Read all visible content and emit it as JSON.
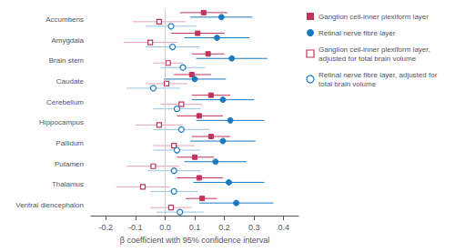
{
  "chart_data": {
    "type": "forest",
    "xlabel": "β coefficient with 95% confidence interval",
    "categories": [
      "Accumbens",
      "Amygdala",
      "Brain stem",
      "Caudate",
      "Cerebellum",
      "Hippocampus",
      "Pallidum",
      "Putamen",
      "Thalamus",
      "Ventral diencephalon"
    ],
    "series": [
      {
        "name": "Ganglion cell-inner plexiform layer",
        "color": "#c0335a",
        "marker": "square",
        "values": [
          0.13,
          0.11,
          0.145,
          0.09,
          0.155,
          0.115,
          0.155,
          0.1,
          0.115,
          0.125
        ],
        "ci_lo": [
          0.05,
          0.02,
          0.09,
          0.03,
          0.09,
          0.04,
          0.09,
          0.04,
          0.04,
          0.07
        ],
        "ci_hi": [
          0.21,
          0.2,
          0.2,
          0.155,
          0.22,
          0.195,
          0.22,
          0.165,
          0.195,
          0.175
        ]
      },
      {
        "name": "Retinal nerve fibre layer",
        "color": "#1a7abf",
        "marker": "circle",
        "values": [
          0.19,
          0.175,
          0.225,
          0.1,
          0.195,
          0.22,
          0.195,
          0.17,
          0.215,
          0.24
        ],
        "ci_lo": [
          0.085,
          0.065,
          0.105,
          -0.005,
          0.09,
          0.105,
          0.085,
          0.065,
          0.095,
          0.115
        ],
        "ci_hi": [
          0.295,
          0.285,
          0.345,
          0.205,
          0.3,
          0.335,
          0.305,
          0.275,
          0.335,
          0.365
        ]
      },
      {
        "name": "Ganglion cell-inner plexiform layer, adjusted for total brain volume",
        "color": "#c0335a",
        "marker": "open_square",
        "values": [
          -0.02,
          -0.05,
          0.01,
          0.005,
          0.055,
          -0.02,
          0.03,
          -0.04,
          -0.075,
          0.02
        ],
        "ci_lo": [
          -0.11,
          -0.14,
          -0.04,
          -0.065,
          -0.015,
          -0.1,
          -0.04,
          -0.13,
          -0.165,
          -0.05
        ],
        "ci_hi": [
          0.07,
          0.04,
          0.06,
          0.075,
          0.125,
          0.06,
          0.1,
          0.05,
          0.015,
          0.09
        ]
      },
      {
        "name": "Retinal nerve fibre layer, adjusted for total brain volume",
        "color": "#1a7abf",
        "marker": "open_circle",
        "values": [
          0.02,
          0.025,
          0.06,
          -0.04,
          0.04,
          0.055,
          0.04,
          0.03,
          0.03,
          0.05
        ],
        "ci_lo": [
          -0.065,
          -0.065,
          -0.015,
          -0.13,
          -0.04,
          -0.04,
          -0.04,
          -0.06,
          -0.05,
          -0.03
        ],
        "ci_hi": [
          0.105,
          0.115,
          0.135,
          0.05,
          0.12,
          0.15,
          0.12,
          0.12,
          0.11,
          0.13
        ]
      }
    ],
    "reference_x": 0,
    "xlim": [
      -0.25,
      0.45
    ],
    "xticks": [
      -0.2,
      -0.1,
      {
        "value": 0,
        "label": "0.0"
      },
      0.1,
      0.2,
      0.3,
      0.4
    ],
    "grid": false,
    "legend": "right"
  }
}
